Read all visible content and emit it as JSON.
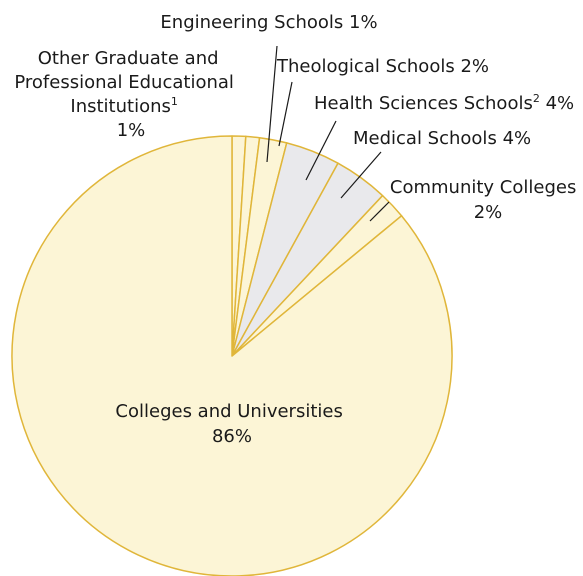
{
  "chart_data": {
    "type": "pie",
    "slices": [
      {
        "label": "Other Graduate and Professional Educational Institutions",
        "sup": "1",
        "value": 1,
        "value_label": "1%",
        "color": "#fcf5d6"
      },
      {
        "label": "Engineering Schools",
        "value": 1,
        "value_label": "1%",
        "color": "#fcf5d6"
      },
      {
        "label": "Theological Schools",
        "value": 2,
        "value_label": "2%",
        "color": "#fcf5d6"
      },
      {
        "label": "Health Sciences Schools",
        "sup": "2",
        "value": 4,
        "value_label": "4%",
        "color": "#e9e9ec"
      },
      {
        "label": "Medical Schools",
        "value": 4,
        "value_label": "4%",
        "color": "#e9e9ec"
      },
      {
        "label": "Community Colleges",
        "value": 2,
        "value_label": "2%",
        "color": "#fcf5d6"
      },
      {
        "label": "Colleges and Universities",
        "value": 86,
        "value_label": "86%",
        "color": "#fcf5d6"
      }
    ],
    "stroke_color": "#e0b63a"
  }
}
